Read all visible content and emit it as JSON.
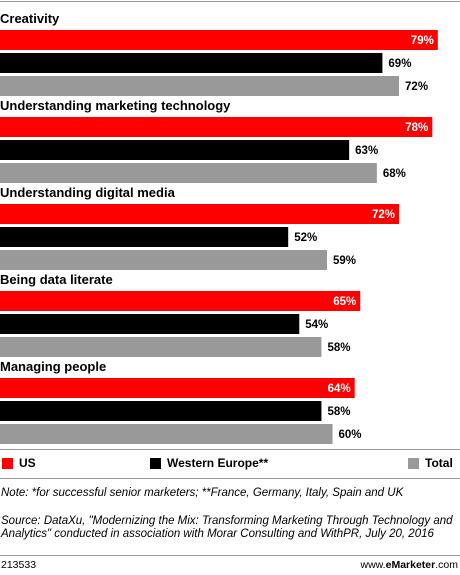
{
  "chart_data": {
    "type": "bar",
    "orientation": "horizontal",
    "categories": [
      "Creativity",
      "Understanding marketing technology",
      "Understanding digital media",
      "Being data literate",
      "Managing people"
    ],
    "series": [
      {
        "name": "US",
        "values": [
          79,
          78,
          72,
          65,
          64
        ],
        "color": "#ff0000",
        "label_color": "#ffffff"
      },
      {
        "name": "Western Europe**",
        "values": [
          69,
          63,
          52,
          54,
          58
        ],
        "color": "#000000",
        "label_color": "#000000"
      },
      {
        "name": "Total",
        "values": [
          72,
          68,
          59,
          58,
          60
        ],
        "color": "#999999",
        "label_color": "#000000"
      }
    ],
    "value_suffix": "%",
    "xlim": [
      0,
      83
    ],
    "legend_position": "bottom",
    "grid": false
  },
  "note": "Note: *for successful senior marketers; **France, Germany, Italy, Spain and UK",
  "source": "Source: DataXu, \"Modernizing the Mix: Transforming Marketing Through Technology and Analytics\" conducted in association with Morar Consulting and WithPR, July 20, 2016",
  "footer": {
    "chart_id": "213533",
    "site_prefix": "www.",
    "site_brand": "eMarketer",
    "site_suffix": ".com"
  }
}
